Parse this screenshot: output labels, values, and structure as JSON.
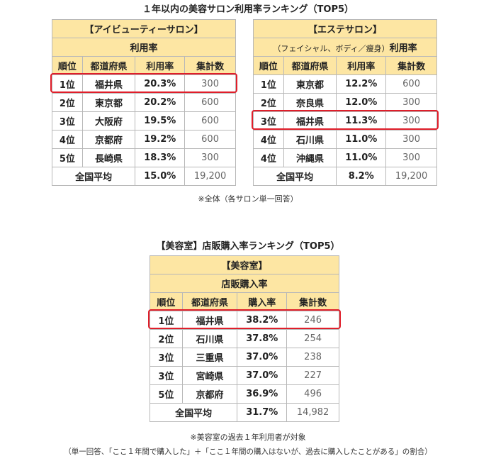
{
  "title1": "１年以内の美容サロン利用率ランキング（TOP5）",
  "table_aesthetic_eyebeauty": {
    "category": "【アイビューティーサロン】",
    "metric": "利用率",
    "columns": [
      "順位",
      "都道府県",
      "利用率",
      "集計数"
    ],
    "rows": [
      {
        "rank": "1位",
        "pref": "福井県",
        "rate": "20.3%",
        "count": "300"
      },
      {
        "rank": "2位",
        "pref": "東京都",
        "rate": "20.2%",
        "count": "600"
      },
      {
        "rank": "3位",
        "pref": "大阪府",
        "rate": "19.5%",
        "count": "600"
      },
      {
        "rank": "4位",
        "pref": "京都府",
        "rate": "19.2%",
        "count": "600"
      },
      {
        "rank": "5位",
        "pref": "長崎県",
        "rate": "18.3%",
        "count": "300"
      }
    ],
    "avg": {
      "label": "全国平均",
      "rate": "15.0%",
      "count": "19,200"
    }
  },
  "table_esthe": {
    "category": "【エステサロン】",
    "metric_sub": "（フェイシャル、ボディ／瘦身）",
    "metric": "利用率",
    "columns": [
      "順位",
      "都道府県",
      "利用率",
      "集計数"
    ],
    "rows": [
      {
        "rank": "1位",
        "pref": "東京都",
        "rate": "12.2%",
        "count": "600"
      },
      {
        "rank": "2位",
        "pref": "奈良県",
        "rate": "12.0%",
        "count": "300"
      },
      {
        "rank": "3位",
        "pref": "福井県",
        "rate": "11.3%",
        "count": "300"
      },
      {
        "rank": "4位",
        "pref": "石川県",
        "rate": "11.0%",
        "count": "300"
      },
      {
        "rank": "4位",
        "pref": "沖縄県",
        "rate": "11.0%",
        "count": "300"
      }
    ],
    "avg": {
      "label": "全国平均",
      "rate": "8.2%",
      "count": "19,200"
    }
  },
  "note1": "※全体（各サロン単一回答）",
  "title2": "【美容室】店販購入率ランキング（TOP5）",
  "table_salon": {
    "category": "【美容室】",
    "metric": "店販購入率",
    "columns": [
      "順位",
      "都道府県",
      "購入率",
      "集計数"
    ],
    "rows": [
      {
        "rank": "1位",
        "pref": "福井県",
        "rate": "38.2%",
        "count": "246"
      },
      {
        "rank": "2位",
        "pref": "石川県",
        "rate": "37.8%",
        "count": "254"
      },
      {
        "rank": "3位",
        "pref": "三重県",
        "rate": "37.0%",
        "count": "238"
      },
      {
        "rank": "3位",
        "pref": "宮崎県",
        "rate": "37.0%",
        "count": "227"
      },
      {
        "rank": "5位",
        "pref": "京都府",
        "rate": "36.9%",
        "count": "496"
      }
    ],
    "avg": {
      "label": "全国平均",
      "rate": "31.7%",
      "count": "14,982"
    }
  },
  "note2": "※美容室の過去１年利用者が対象",
  "note3": "（単一回答、「ここ１年間で購入した」＋「ここ１年間の購入はないが、過去に購入したことがある」の割合）",
  "highlight_color": "#e01e2a",
  "header_color": "#fde6a3"
}
